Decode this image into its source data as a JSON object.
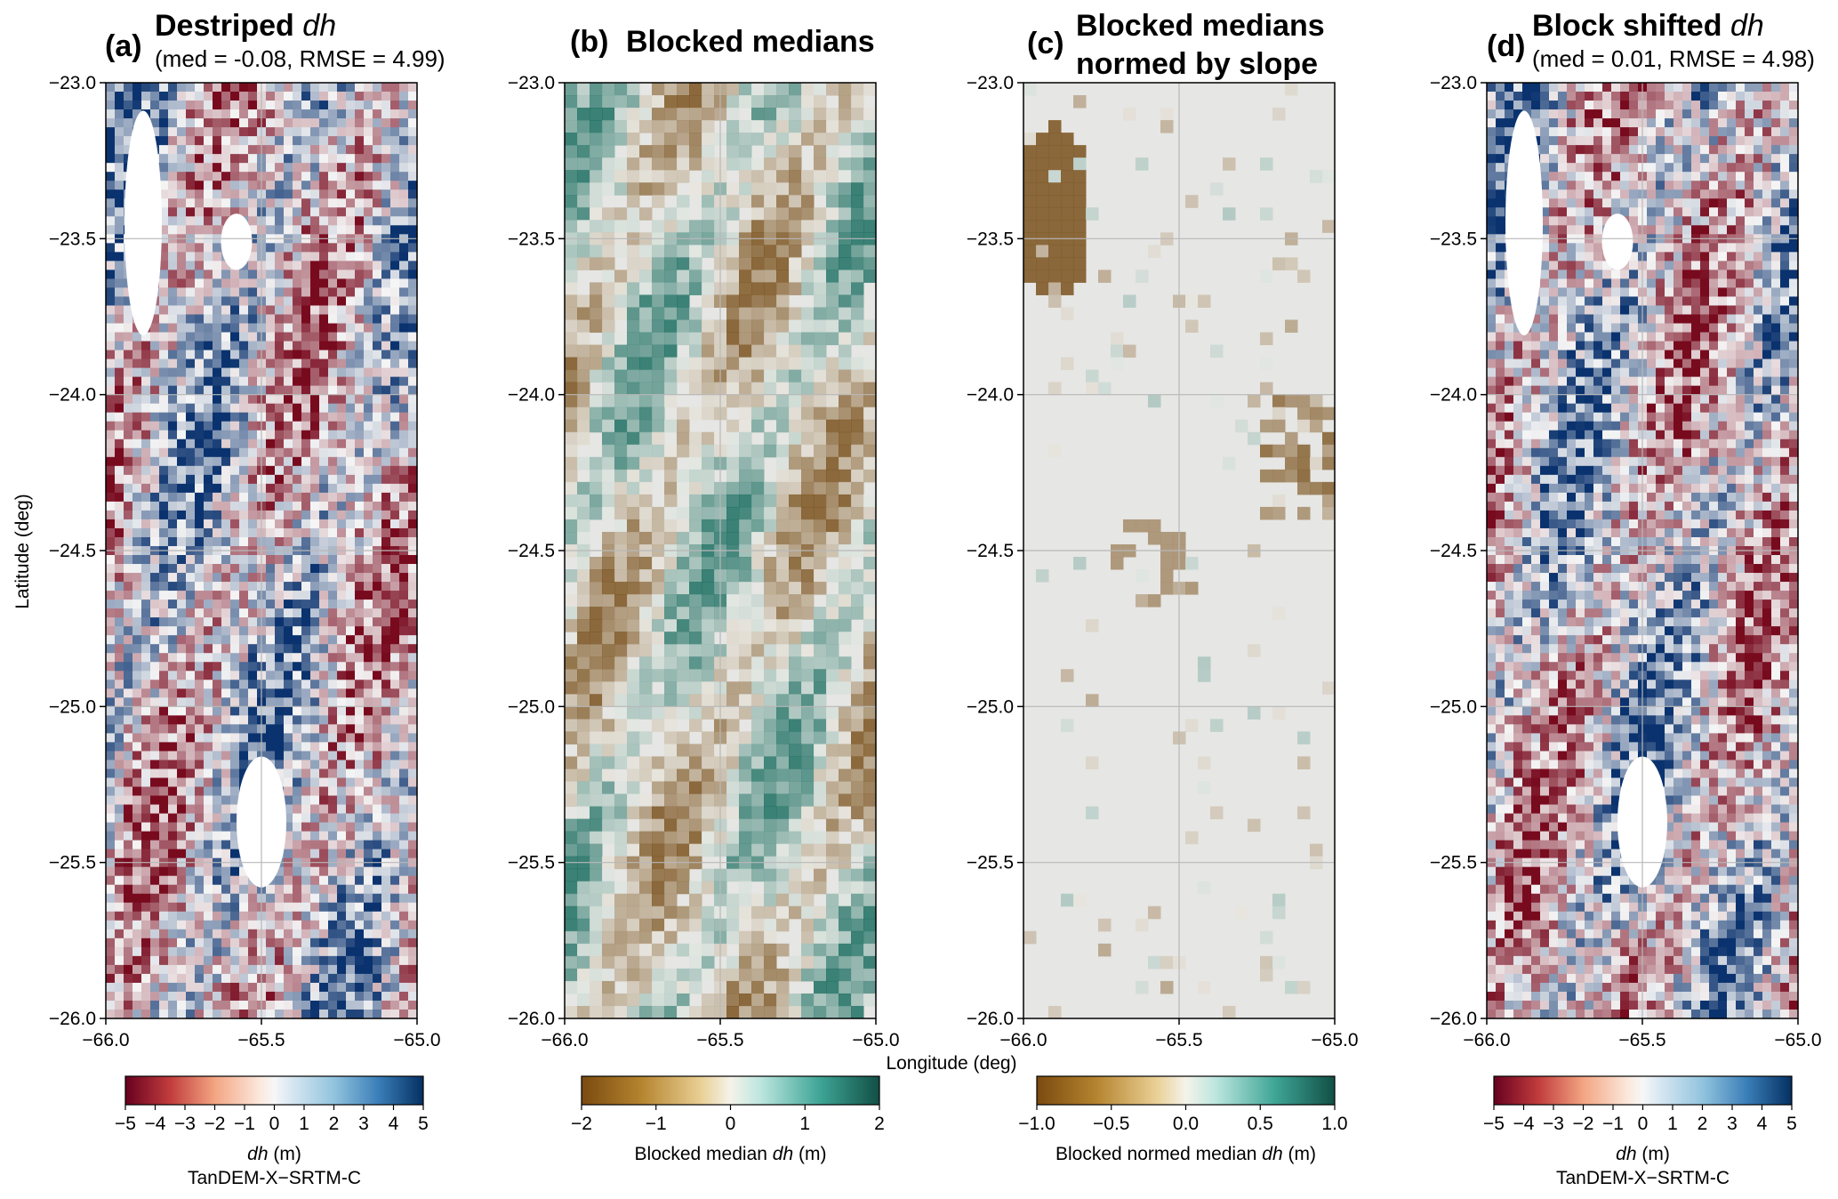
{
  "chart_data": [
    {
      "type": "heatmap",
      "panel": "(a)",
      "title": "Destriped",
      "title_italic": "dh",
      "subtitle": "(med = -0.08, RMSE = 4.99)",
      "colormap": "red-white-blue",
      "xlim": [
        -66.0,
        -65.0
      ],
      "ylim": [
        -26.0,
        -23.0
      ],
      "xticks": [
        "−66.0",
        "−65.5",
        "−65.0"
      ],
      "yticks": [
        "−23.0",
        "−23.5",
        "−24.0",
        "−24.5",
        "−25.0",
        "−25.5",
        "−26.0"
      ],
      "colorbar": {
        "range": [
          -5,
          5
        ],
        "ticks": [
          "−5",
          "−4",
          "−3",
          "−2",
          "−1",
          "0",
          "1",
          "2",
          "3",
          "4",
          "5"
        ],
        "label_italic": "dh",
        "label_suffix": " (m)",
        "label_line2": "TanDEM-X−SRTM-C"
      }
    },
    {
      "type": "heatmap",
      "panel": "(b)",
      "title": "Blocked medians",
      "colormap": "brown-white-teal",
      "xlim": [
        -66.0,
        -65.0
      ],
      "ylim": [
        -26.0,
        -23.0
      ],
      "xticks": [
        "−66.0",
        "−65.5",
        "−65.0"
      ],
      "yticks": [
        "−23.0",
        "−23.5",
        "−24.0",
        "−24.5",
        "−25.0",
        "−25.5",
        "−26.0"
      ],
      "colorbar": {
        "range": [
          -2,
          2
        ],
        "ticks": [
          "−2",
          "−1",
          "0",
          "1",
          "2"
        ],
        "label_prefix": "Blocked median ",
        "label_italic": "dh",
        "label_suffix": " (m)"
      }
    },
    {
      "type": "heatmap",
      "panel": "(c)",
      "title_line1": "Blocked medians",
      "title_line2": "normed by slope",
      "colormap": "brown-white-teal",
      "xlim": [
        -66.0,
        -65.0
      ],
      "ylim": [
        -26.0,
        -23.0
      ],
      "xticks": [
        "−66.0",
        "−65.5",
        "−65.0"
      ],
      "yticks": [
        "−23.0",
        "−23.5",
        "−24.0",
        "−24.5",
        "−25.0",
        "−25.5",
        "−26.0"
      ],
      "colorbar": {
        "range": [
          -1.0,
          1.0
        ],
        "ticks": [
          "−1.0",
          "−0.5",
          "0.0",
          "0.5",
          "1.0"
        ],
        "label_prefix": "Blocked  normed median ",
        "label_italic": "dh",
        "label_suffix": " (m)"
      }
    },
    {
      "type": "heatmap",
      "panel": "(d)",
      "title": "Block shifted",
      "title_italic": "dh",
      "subtitle": "(med = 0.01, RMSE = 4.98)",
      "colormap": "red-white-blue",
      "xlim": [
        -66.0,
        -65.0
      ],
      "ylim": [
        -26.0,
        -23.0
      ],
      "xticks": [
        "−66.0",
        "−65.5",
        "−65.0"
      ],
      "yticks": [
        "−23.0",
        "−23.5",
        "−24.0",
        "−24.5",
        "−25.0",
        "−25.5",
        "−26.0"
      ],
      "colorbar": {
        "range": [
          -5,
          5
        ],
        "ticks": [
          "−5",
          "−4",
          "−3",
          "−2",
          "−1",
          "0",
          "1",
          "2",
          "3",
          "4",
          "5"
        ],
        "label_italic": "dh",
        "label_suffix": " (m)",
        "label_line2": "TanDEM-X−SRTM-C"
      }
    }
  ],
  "shared": {
    "xlabel": "Longitude (deg)",
    "ylabel": "Latitude (deg)"
  },
  "colors": {
    "red": "#8b0a1f",
    "blue": "#0e3f77",
    "brown": "#7a5230",
    "teal": "#1f6e62",
    "grid": "#b8b8b8"
  }
}
